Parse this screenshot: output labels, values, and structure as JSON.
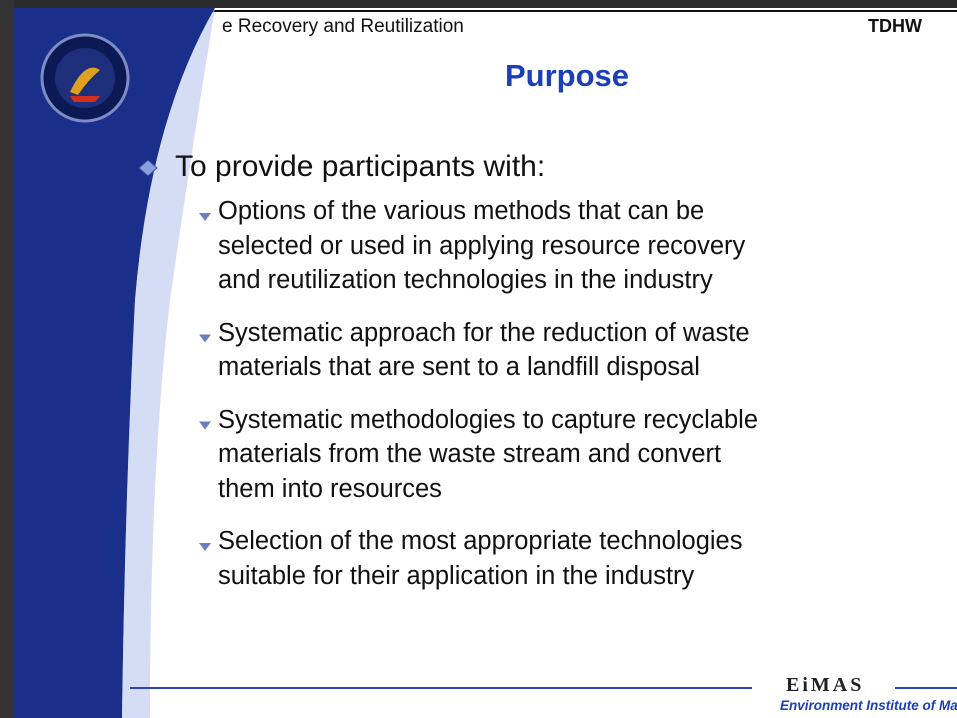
{
  "header": {
    "left": "e Recovery and Reutilization",
    "right": "TDHW"
  },
  "title": "Purpose",
  "bullet": {
    "text": "To provide participants with:",
    "items": [
      [
        "Options of the various methods that can be",
        "selected or used in applying resource recovery",
        "and reutilization technologies in the industry"
      ],
      [
        "Systematic approach for the reduction of waste",
        "materials that are sent to a landfill disposal"
      ],
      [
        "Systematic methodologies to capture recyclable",
        "materials from the waste stream and convert",
        "them into resources"
      ],
      [
        "Selection of the most appropriate technologies",
        "suitable for their application in the industry"
      ]
    ]
  },
  "footer": {
    "logo": "EiMAS",
    "org": "Environment Institute of Malaysia"
  }
}
